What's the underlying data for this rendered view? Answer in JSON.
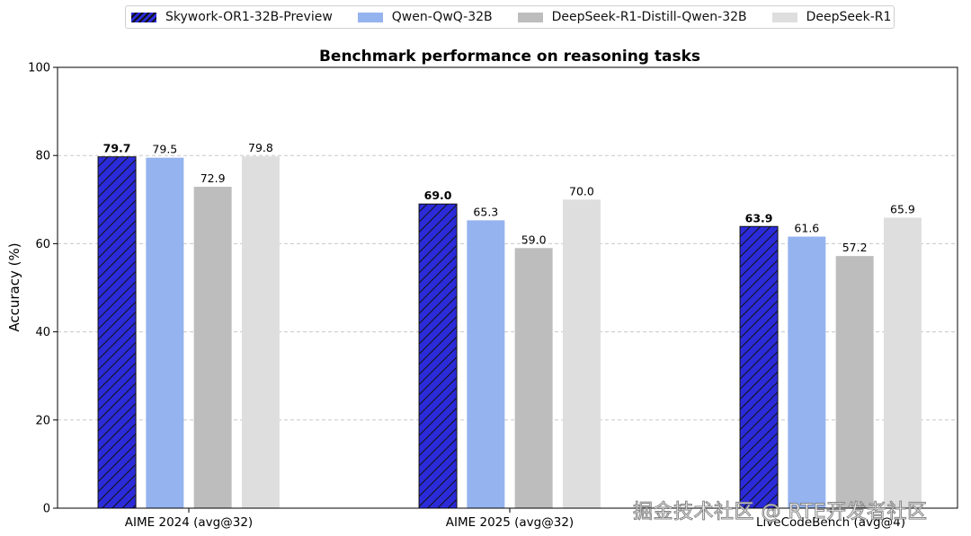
{
  "chart_data": {
    "type": "bar",
    "title": "Benchmark performance on reasoning tasks",
    "ylabel": "Accuracy (%)",
    "xlabel": "",
    "ylim": [
      0,
      100
    ],
    "yticks": [
      "0",
      "20",
      "40",
      "60",
      "80",
      "100"
    ],
    "grid": true,
    "legend_position": "top-center",
    "categories": [
      "AIME 2024 (avg@32)",
      "AIME 2025 (avg@32)",
      "LiveCodeBench (avg@4)"
    ],
    "series": [
      {
        "name": "Skywork-OR1-32B-Preview",
        "values": [
          79.7,
          69.0,
          63.9
        ],
        "labels": [
          "79.7",
          "69.0",
          "63.9"
        ],
        "color": "#2b2bd9",
        "hatch": true,
        "bold_labels": true
      },
      {
        "name": "Qwen-QwQ-32B",
        "values": [
          79.5,
          65.3,
          61.6
        ],
        "labels": [
          "79.5",
          "65.3",
          "61.6"
        ],
        "color": "#95b3ef",
        "hatch": false,
        "bold_labels": false
      },
      {
        "name": "DeepSeek-R1-Distill-Qwen-32B",
        "values": [
          72.9,
          59.0,
          57.2
        ],
        "labels": [
          "72.9",
          "59.0",
          "57.2"
        ],
        "color": "#bdbdbd",
        "hatch": false,
        "bold_labels": false
      },
      {
        "name": "DeepSeek-R1",
        "values": [
          79.8,
          70.0,
          65.9
        ],
        "labels": [
          "79.8",
          "70.0",
          "65.9"
        ],
        "color": "#dedede",
        "hatch": false,
        "bold_labels": false
      }
    ]
  },
  "watermark": "掘金技术社区 @ RTE开发者社区"
}
